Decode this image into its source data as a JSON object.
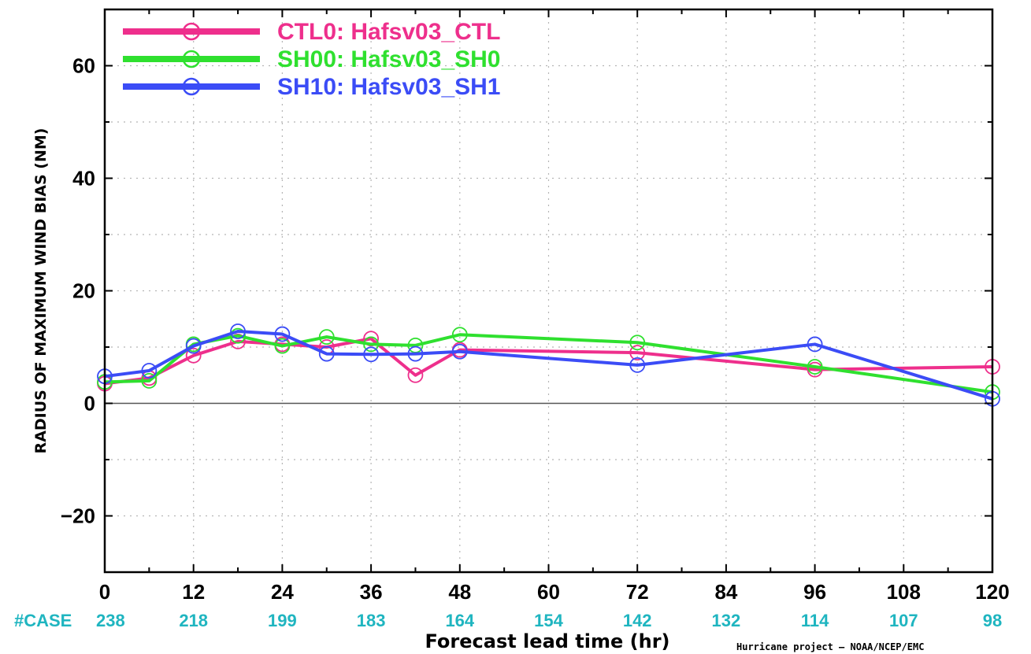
{
  "chart_data": {
    "type": "line",
    "xlabel": "Forecast lead time (hr)",
    "ylabel": "RADIUS OF MAXIMUM WIND BIAS (NM)",
    "xlim": [
      0,
      120
    ],
    "ylim": [
      -30,
      70
    ],
    "x_ticks": [
      "0",
      "12",
      "24",
      "36",
      "48",
      "60",
      "72",
      "84",
      "96",
      "108",
      "120"
    ],
    "y_ticks": [
      "60",
      "40",
      "20",
      "0",
      "−20"
    ],
    "grid": true,
    "legend_position": "top-left",
    "series": [
      {
        "name": "CTL0: Hafsv03_CTL",
        "color": "#ee2f8c",
        "x": [
          0,
          6,
          12,
          18,
          24,
          30,
          36,
          42,
          48,
          72,
          96,
          120
        ],
        "y": [
          3.5,
          4.5,
          8.5,
          11,
          10.5,
          10,
          11.5,
          5,
          9.5,
          9,
          6,
          6.5
        ]
      },
      {
        "name": "SH00: Hafsv03_SH0",
        "color": "#2fe02f",
        "x": [
          0,
          6,
          12,
          18,
          24,
          30,
          36,
          42,
          48,
          72,
          96,
          120
        ],
        "y": [
          3.8,
          4,
          10.5,
          12,
          10.2,
          11.8,
          10.5,
          10.3,
          12.2,
          10.8,
          6.5,
          2
        ]
      },
      {
        "name": "SH10: Hafsv03_SH1",
        "color": "#3b4cf6",
        "x": [
          0,
          6,
          12,
          18,
          24,
          30,
          36,
          42,
          48,
          72,
          96,
          120
        ],
        "y": [
          4.8,
          5.8,
          10.2,
          12.8,
          12.3,
          8.8,
          8.7,
          8.8,
          9.2,
          6.8,
          10.5,
          0.8
        ]
      }
    ],
    "cases": {
      "label": "#CASE",
      "color": "#1fb5c0",
      "x": [
        0,
        12,
        24,
        36,
        48,
        60,
        72,
        84,
        96,
        108,
        120
      ],
      "values": [
        "238",
        "218",
        "199",
        "183",
        "164",
        "154",
        "142",
        "132",
        "114",
        "107",
        "98"
      ]
    },
    "credit": "Hurricane project – NOAA/NCEP/EMC"
  }
}
